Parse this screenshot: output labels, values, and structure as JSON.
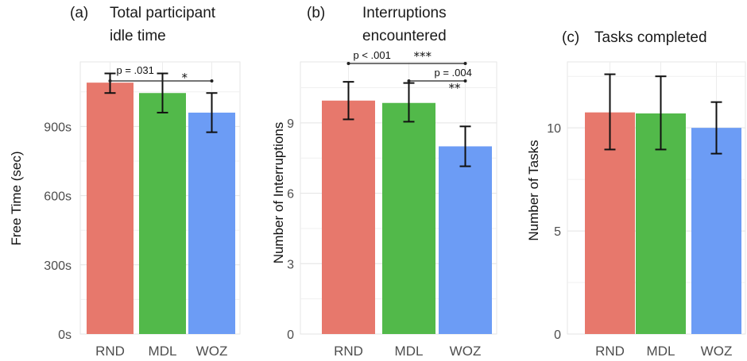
{
  "chart_data": [
    {
      "type": "bar",
      "panel_label": "(a)",
      "title": [
        "Total participant",
        "idle time"
      ],
      "ylabel": "Free Time (sec)",
      "categories": [
        "RND",
        "MDL",
        "WOZ"
      ],
      "values": [
        1090,
        1045,
        960
      ],
      "error_low": [
        1045,
        960,
        875
      ],
      "error_high": [
        1130,
        1130,
        1045
      ],
      "ylim": [
        0,
        1180
      ],
      "yticks": [
        0,
        300,
        600,
        900
      ],
      "ytick_labels": [
        "0s",
        "300s",
        "600s",
        "900s"
      ],
      "colors": [
        "#e7786c",
        "#52b94a",
        "#6c9cf5"
      ],
      "grid": true,
      "annotations": [
        {
          "from": 0,
          "to": 2,
          "label": "p = .031",
          "stars": "*"
        }
      ]
    },
    {
      "type": "bar",
      "panel_label": "(b)",
      "title": [
        "Interruptions",
        "encountered"
      ],
      "ylabel": "Number of Interruptions",
      "categories": [
        "RND",
        "MDL",
        "WOZ"
      ],
      "values": [
        9.95,
        9.85,
        8.0
      ],
      "error_low": [
        9.15,
        9.05,
        7.15
      ],
      "error_high": [
        10.75,
        10.7,
        8.85
      ],
      "ylim": [
        0,
        11.6
      ],
      "yticks": [
        0,
        3,
        6,
        9
      ],
      "ytick_labels": [
        "0",
        "3",
        "6",
        "9"
      ],
      "colors": [
        "#e7786c",
        "#52b94a",
        "#6c9cf5"
      ],
      "grid": true,
      "annotations": [
        {
          "from": 0,
          "to": 2,
          "label": "p < .001",
          "stars": "***"
        },
        {
          "from": 1,
          "to": 2,
          "label": "p = .004",
          "stars": "**"
        }
      ]
    },
    {
      "type": "bar",
      "panel_label": "(c)",
      "title": [
        "Tasks completed"
      ],
      "ylabel": "Number of Tasks",
      "categories": [
        "RND",
        "MDL",
        "WOZ"
      ],
      "values": [
        10.75,
        10.7,
        10.0
      ],
      "error_low": [
        8.95,
        8.95,
        8.75
      ],
      "error_high": [
        12.6,
        12.5,
        11.25
      ],
      "ylim": [
        0,
        13.2
      ],
      "yticks": [
        0,
        5,
        10
      ],
      "ytick_labels": [
        "0",
        "5",
        "10"
      ],
      "colors": [
        "#e7786c",
        "#52b94a",
        "#6c9cf5"
      ],
      "grid": true,
      "annotations": []
    }
  ]
}
